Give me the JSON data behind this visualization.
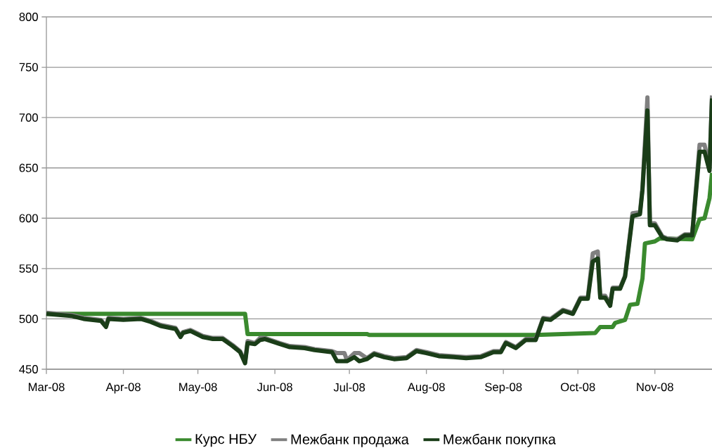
{
  "chart_data": {
    "type": "line",
    "xlim": [
      "2008-03-01",
      "2008-11-24"
    ],
    "xticks": [
      {
        "value": "2008-03-01",
        "label": "Mar-08"
      },
      {
        "value": "2008-04-01",
        "label": "Apr-08"
      },
      {
        "value": "2008-05-01",
        "label": "May-08"
      },
      {
        "value": "2008-06-01",
        "label": "Jun-08"
      },
      {
        "value": "2008-07-01",
        "label": "Jul-08"
      },
      {
        "value": "2008-08-01",
        "label": "Aug-08"
      },
      {
        "value": "2008-09-01",
        "label": "Sep-08"
      },
      {
        "value": "2008-10-01",
        "label": "Oct-08"
      },
      {
        "value": "2008-11-01",
        "label": "Nov-08"
      }
    ],
    "ylim": [
      450,
      800
    ],
    "yticks": [
      450,
      500,
      550,
      600,
      650,
      700,
      750,
      800
    ],
    "grid": "y",
    "legend": "bottom",
    "marker": "none",
    "line_style": "solid",
    "series": [
      {
        "name": "Курс НБУ",
        "color": "#3a8a2e",
        "x": [
          "2008-03-01",
          "2008-05-20",
          "2008-05-21",
          "2008-07-08",
          "2008-07-09",
          "2008-09-14",
          "2008-10-08",
          "2008-10-10",
          "2008-10-15",
          "2008-10-16",
          "2008-10-20",
          "2008-10-22",
          "2008-10-25",
          "2008-10-27",
          "2008-10-28",
          "2008-11-01",
          "2008-11-03",
          "2008-11-16",
          "2008-11-19",
          "2008-11-21",
          "2008-11-23",
          "2008-11-24"
        ],
        "values": [
          505,
          505,
          485,
          485,
          484,
          484,
          486,
          492,
          492,
          496,
          499,
          514,
          515,
          540,
          575,
          577,
          580,
          579,
          599,
          600,
          620,
          645
        ]
      },
      {
        "name": "Межбанк продажа",
        "color": "#808080",
        "x": [
          "2008-03-01",
          "2008-03-11",
          "2008-03-16",
          "2008-03-23",
          "2008-03-25",
          "2008-03-26",
          "2008-04-01",
          "2008-04-08",
          "2008-04-12",
          "2008-04-16",
          "2008-04-22",
          "2008-04-24",
          "2008-04-25",
          "2008-04-28",
          "2008-05-03",
          "2008-05-07",
          "2008-05-11",
          "2008-05-15",
          "2008-05-18",
          "2008-05-20",
          "2008-05-21",
          "2008-05-24",
          "2008-05-26",
          "2008-05-28",
          "2008-06-03",
          "2008-06-07",
          "2008-06-13",
          "2008-06-17",
          "2008-06-24",
          "2008-06-26",
          "2008-06-29",
          "2008-06-30",
          "2008-07-03",
          "2008-07-05",
          "2008-07-08",
          "2008-07-11",
          "2008-07-15",
          "2008-07-19",
          "2008-07-24",
          "2008-07-28",
          "2008-08-01",
          "2008-08-06",
          "2008-08-12",
          "2008-08-17",
          "2008-08-23",
          "2008-08-28",
          "2008-08-31",
          "2008-09-02",
          "2008-09-06",
          "2008-09-10",
          "2008-09-14",
          "2008-09-17",
          "2008-09-20",
          "2008-09-25",
          "2008-09-29",
          "2008-10-02",
          "2008-10-05",
          "2008-10-07",
          "2008-10-09",
          "2008-10-10",
          "2008-10-12",
          "2008-10-14",
          "2008-10-15",
          "2008-10-18",
          "2008-10-20",
          "2008-10-23",
          "2008-10-26",
          "2008-10-27",
          "2008-10-29",
          "2008-10-30",
          "2008-11-01",
          "2008-11-04",
          "2008-11-06",
          "2008-11-10",
          "2008-11-13",
          "2008-11-16",
          "2008-11-19",
          "2008-11-21",
          "2008-11-23",
          "2008-11-24"
        ],
        "values": [
          506,
          504,
          501,
          499,
          493,
          501,
          500,
          501,
          498,
          494,
          491,
          483,
          487,
          489,
          483,
          481,
          481,
          474,
          468,
          457,
          478,
          476,
          481,
          481,
          476,
          473,
          472,
          470,
          468,
          466,
          466,
          459,
          466,
          466,
          461,
          466,
          463,
          461,
          462,
          469,
          467,
          464,
          463,
          462,
          463,
          468,
          468,
          477,
          472,
          480,
          480,
          501,
          500,
          509,
          506,
          521,
          521,
          565,
          567,
          523,
          523,
          515,
          531,
          531,
          543,
          605,
          606,
          630,
          720,
          595,
          595,
          582,
          580,
          579,
          584,
          584,
          673,
          673,
          650,
          722
        ]
      },
      {
        "name": "Межбанк покупка",
        "color": "#1a3d18",
        "x": [
          "2008-03-01",
          "2008-03-11",
          "2008-03-16",
          "2008-03-23",
          "2008-03-25",
          "2008-03-26",
          "2008-04-01",
          "2008-04-08",
          "2008-04-12",
          "2008-04-16",
          "2008-04-22",
          "2008-04-24",
          "2008-04-25",
          "2008-04-28",
          "2008-05-03",
          "2008-05-07",
          "2008-05-11",
          "2008-05-15",
          "2008-05-18",
          "2008-05-20",
          "2008-05-21",
          "2008-05-24",
          "2008-05-26",
          "2008-05-28",
          "2008-06-03",
          "2008-06-07",
          "2008-06-13",
          "2008-06-17",
          "2008-06-24",
          "2008-06-26",
          "2008-06-30",
          "2008-07-03",
          "2008-07-05",
          "2008-07-08",
          "2008-07-11",
          "2008-07-15",
          "2008-07-19",
          "2008-07-24",
          "2008-07-28",
          "2008-08-01",
          "2008-08-06",
          "2008-08-12",
          "2008-08-17",
          "2008-08-23",
          "2008-08-28",
          "2008-08-31",
          "2008-09-02",
          "2008-09-06",
          "2008-09-10",
          "2008-09-14",
          "2008-09-17",
          "2008-09-20",
          "2008-09-25",
          "2008-09-29",
          "2008-10-02",
          "2008-10-05",
          "2008-10-07",
          "2008-10-09",
          "2008-10-10",
          "2008-10-12",
          "2008-10-14",
          "2008-10-15",
          "2008-10-18",
          "2008-10-20",
          "2008-10-23",
          "2008-10-26",
          "2008-10-27",
          "2008-10-29",
          "2008-10-30",
          "2008-11-01",
          "2008-11-04",
          "2008-11-06",
          "2008-11-10",
          "2008-11-13",
          "2008-11-16",
          "2008-11-19",
          "2008-11-21",
          "2008-11-23",
          "2008-11-24"
        ],
        "values": [
          505,
          503,
          500,
          498,
          492,
          500,
          499,
          500,
          497,
          493,
          490,
          482,
          486,
          488,
          482,
          480,
          480,
          473,
          467,
          456,
          476,
          475,
          479,
          480,
          475,
          472,
          471,
          469,
          467,
          458,
          458,
          462,
          458,
          460,
          465,
          462,
          460,
          461,
          468,
          466,
          463,
          462,
          461,
          462,
          467,
          467,
          476,
          471,
          479,
          479,
          500,
          499,
          508,
          505,
          520,
          520,
          557,
          560,
          521,
          521,
          513,
          530,
          530,
          542,
          602,
          604,
          628,
          707,
          593,
          593,
          581,
          579,
          578,
          583,
          583,
          666,
          666,
          647,
          719
        ]
      }
    ]
  }
}
